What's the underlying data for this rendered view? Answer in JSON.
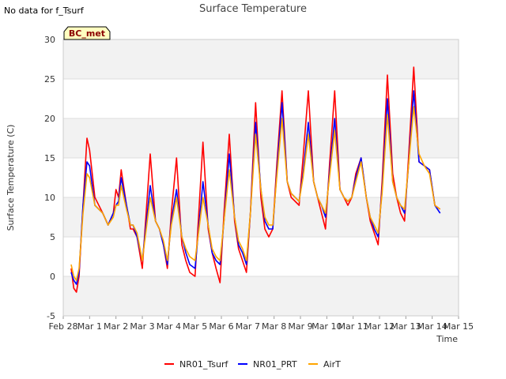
{
  "note": "No data for f_Tsurf",
  "badge": "BC_met",
  "colors": {
    "NR01_Tsurf": "#ff0000",
    "NR01_PRT": "#0000ff",
    "AirT": "#ffa500",
    "band": "#f2f2f2",
    "grid": "#dddddd",
    "badge_bg": "#ffffc0",
    "badge_text": "#8b0000"
  },
  "chart_data": {
    "type": "line",
    "title": "Surface Temperature",
    "xlabel": "Time",
    "ylabel": "Surface Temperature (C)",
    "ylim": [
      -5,
      30
    ],
    "yticks": [
      -5,
      0,
      5,
      10,
      15,
      20,
      25,
      30
    ],
    "xlim": [
      0,
      15
    ],
    "xticks": [
      0,
      1,
      2,
      3,
      4,
      5,
      6,
      7,
      8,
      9,
      10,
      11,
      12,
      13,
      14,
      15
    ],
    "xticklabels": [
      "Feb 28",
      "Mar 1",
      "Mar 2",
      "Mar 3",
      "Mar 4",
      "Mar 5",
      "Mar 6",
      "Mar 7",
      "Mar 8",
      "Mar 9",
      "Mar 10",
      "Mar 11",
      "Mar 12",
      "Mar 13",
      "Mar 14",
      "Mar 15"
    ],
    "grid": true,
    "legend": "bottom",
    "series": [
      {
        "name": "NR01_Tsurf",
        "x": [
          0.3,
          0.4,
          0.5,
          0.6,
          0.75,
          0.9,
          1.0,
          1.2,
          1.5,
          1.7,
          1.9,
          2.0,
          2.1,
          2.2,
          2.4,
          2.55,
          2.65,
          2.8,
          3.0,
          3.3,
          3.5,
          3.65,
          3.8,
          3.95,
          4.1,
          4.3,
          4.5,
          4.65,
          4.8,
          5.0,
          5.3,
          5.5,
          5.65,
          5.8,
          5.95,
          6.1,
          6.3,
          6.5,
          6.65,
          6.8,
          6.95,
          7.1,
          7.3,
          7.5,
          7.65,
          7.8,
          7.95,
          8.1,
          8.3,
          8.5,
          8.65,
          8.8,
          8.95,
          9.1,
          9.3,
          9.5,
          9.65,
          9.8,
          9.95,
          10.1,
          10.3,
          10.5,
          10.65,
          10.8,
          10.95,
          11.1,
          11.3,
          11.5,
          11.65,
          11.8,
          11.95,
          12.1,
          12.3,
          12.5,
          12.65,
          12.8,
          12.95,
          13.1,
          13.3,
          13.5,
          13.7,
          13.9,
          14.1,
          14.3
        ],
        "y": [
          1.0,
          -1.5,
          -2.0,
          0.0,
          9.0,
          17.5,
          16.0,
          10.0,
          8.0,
          6.5,
          8.0,
          11.0,
          10.0,
          13.5,
          9.0,
          6.0,
          6.0,
          5.0,
          1.0,
          15.5,
          7.0,
          6.0,
          4.0,
          1.0,
          8.0,
          15.0,
          4.0,
          2.0,
          0.5,
          0.0,
          17.0,
          6.0,
          3.0,
          1.0,
          -0.8,
          8.0,
          18.0,
          7.0,
          3.5,
          2.0,
          0.5,
          8.0,
          22.0,
          10.0,
          6.0,
          5.0,
          6.0,
          14.0,
          23.5,
          12.0,
          10.0,
          9.5,
          9.0,
          15.0,
          23.5,
          12.0,
          10.0,
          8.0,
          6.0,
          14.0,
          23.5,
          11.0,
          10.0,
          9.0,
          10.0,
          13.0,
          15.0,
          10.0,
          7.0,
          5.5,
          4.0,
          12.0,
          25.5,
          13.0,
          10.0,
          8.0,
          7.0,
          15.0,
          26.5,
          14.5,
          14.0,
          13.5,
          9.0,
          8.5
        ]
      },
      {
        "name": "NR01_PRT",
        "x": [
          0.3,
          0.4,
          0.5,
          0.6,
          0.75,
          0.9,
          1.0,
          1.2,
          1.5,
          1.7,
          1.9,
          2.0,
          2.1,
          2.2,
          2.4,
          2.55,
          2.65,
          2.8,
          3.0,
          3.3,
          3.5,
          3.65,
          3.8,
          3.95,
          4.1,
          4.3,
          4.5,
          4.65,
          4.8,
          5.0,
          5.3,
          5.5,
          5.65,
          5.8,
          5.95,
          6.1,
          6.3,
          6.5,
          6.65,
          6.8,
          6.95,
          7.1,
          7.3,
          7.5,
          7.65,
          7.8,
          7.95,
          8.1,
          8.3,
          8.5,
          8.65,
          8.8,
          8.95,
          9.1,
          9.3,
          9.5,
          9.65,
          9.8,
          9.95,
          10.1,
          10.3,
          10.5,
          10.65,
          10.8,
          10.95,
          11.1,
          11.3,
          11.5,
          11.65,
          11.8,
          11.95,
          12.1,
          12.3,
          12.5,
          12.65,
          12.8,
          12.95,
          13.1,
          13.3,
          13.5,
          13.7,
          13.9,
          14.1,
          14.3
        ],
        "y": [
          0.5,
          -0.5,
          -1.0,
          0.5,
          9.0,
          14.5,
          14.0,
          9.0,
          8.0,
          6.5,
          8.0,
          9.0,
          9.5,
          12.5,
          9.0,
          6.5,
          6.5,
          5.0,
          2.0,
          11.5,
          7.0,
          6.0,
          4.0,
          1.5,
          7.0,
          11.0,
          5.0,
          3.0,
          1.5,
          1.0,
          12.0,
          6.5,
          3.0,
          2.0,
          1.5,
          7.0,
          15.5,
          7.5,
          4.0,
          3.0,
          1.5,
          8.0,
          19.5,
          11.0,
          7.0,
          6.0,
          6.0,
          13.0,
          22.0,
          12.0,
          10.5,
          10.0,
          9.5,
          13.0,
          19.5,
          12.0,
          10.0,
          9.0,
          7.5,
          13.0,
          20.0,
          11.0,
          10.0,
          9.5,
          10.0,
          12.5,
          15.0,
          10.0,
          7.5,
          6.0,
          5.0,
          11.0,
          22.5,
          12.0,
          10.0,
          9.0,
          8.0,
          14.0,
          23.5,
          14.5,
          14.0,
          13.5,
          9.0,
          8.0
        ]
      },
      {
        "name": "AirT",
        "x": [
          0.3,
          0.4,
          0.5,
          0.6,
          0.75,
          0.9,
          1.0,
          1.2,
          1.5,
          1.7,
          1.9,
          2.0,
          2.1,
          2.2,
          2.4,
          2.55,
          2.65,
          2.8,
          3.0,
          3.3,
          3.5,
          3.65,
          3.8,
          3.95,
          4.1,
          4.3,
          4.5,
          4.65,
          4.8,
          5.0,
          5.3,
          5.5,
          5.65,
          5.8,
          5.95,
          6.1,
          6.3,
          6.5,
          6.65,
          6.8,
          6.95,
          7.1,
          7.3,
          7.5,
          7.65,
          7.8,
          7.95,
          8.1,
          8.3,
          8.5,
          8.65,
          8.8,
          8.95,
          9.1,
          9.3,
          9.5,
          9.65,
          9.8,
          9.95,
          10.1,
          10.3,
          10.5,
          10.65,
          10.8,
          10.95,
          11.1,
          11.3,
          11.5,
          11.65,
          11.8,
          11.95,
          12.1,
          12.3,
          12.5,
          12.65,
          12.8,
          12.95,
          13.1,
          13.3,
          13.5,
          13.7,
          13.9,
          14.1,
          14.3
        ],
        "y": [
          1.5,
          0.0,
          -0.5,
          1.0,
          8.0,
          13.0,
          12.5,
          9.0,
          8.0,
          6.5,
          7.5,
          9.0,
          9.0,
          11.5,
          8.5,
          6.5,
          6.5,
          5.5,
          2.0,
          10.0,
          7.0,
          6.0,
          4.5,
          2.0,
          6.5,
          10.0,
          5.0,
          3.5,
          2.5,
          2.0,
          10.0,
          6.5,
          3.5,
          2.5,
          2.0,
          7.0,
          13.5,
          7.5,
          4.5,
          3.5,
          2.0,
          8.0,
          18.0,
          11.0,
          7.5,
          6.5,
          6.5,
          12.5,
          20.0,
          12.0,
          10.5,
          10.0,
          9.5,
          12.5,
          18.0,
          12.0,
          10.0,
          9.0,
          8.0,
          12.5,
          18.5,
          11.0,
          10.0,
          9.5,
          10.0,
          12.0,
          14.5,
          10.0,
          7.5,
          6.5,
          5.5,
          10.5,
          20.5,
          12.0,
          10.0,
          9.0,
          8.5,
          14.0,
          21.5,
          15.5,
          14.0,
          13.0,
          9.0,
          8.5
        ]
      }
    ]
  }
}
